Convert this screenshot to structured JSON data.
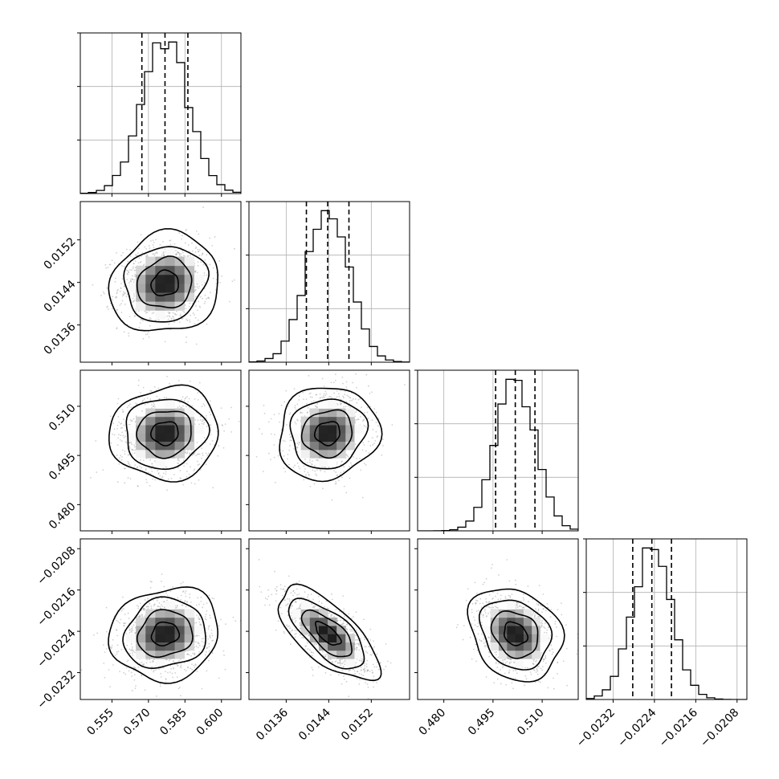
{
  "chart_data": {
    "type": "corner",
    "n_params": 4,
    "grid": true,
    "colors": {
      "hist": "#000000",
      "scatter": "#9a9a9a",
      "contour": "#000000",
      "grid": "#b0b0b0"
    },
    "params": [
      {
        "range": [
          0.542,
          0.608
        ],
        "ticks": [
          0.555,
          0.57,
          0.585,
          0.6
        ],
        "tick_labels": [
          "0.555",
          "0.570",
          "0.585",
          "0.600"
        ],
        "quantiles": [
          0.5673,
          0.5768,
          0.5862
        ],
        "mean": 0.5768,
        "sigma": 0.0095
      },
      {
        "range": [
          0.0129,
          0.01592
        ],
        "ticks": [
          0.0136,
          0.0144,
          0.0152
        ],
        "tick_labels": [
          "0.0136",
          "0.0144",
          "0.0152"
        ],
        "quantiles": [
          0.01398,
          0.01438,
          0.01478
        ],
        "mean": 0.01438,
        "sigma": 0.0004
      },
      {
        "range": [
          0.472,
          0.521
        ],
        "ticks": [
          0.48,
          0.495,
          0.51
        ],
        "tick_labels": [
          "0.480",
          "0.495",
          "0.510"
        ],
        "quantiles": [
          0.4958,
          0.5018,
          0.5078
        ],
        "mean": 0.5018,
        "sigma": 0.006
      },
      {
        "range": [
          -0.02372,
          -0.02061
        ],
        "ticks": [
          -0.0232,
          -0.0224,
          -0.0216,
          -0.0208
        ],
        "tick_labels": [
          "−0.0232",
          "−0.0224",
          "−0.0216",
          "−0.0208"
        ],
        "quantiles": [
          -0.02282,
          -0.02245,
          -0.02207
        ],
        "mean": -0.02245,
        "sigma": 0.00038
      }
    ],
    "correlations": [
      [
        1.0,
        0.1,
        0.05,
        0.1
      ],
      [
        0.1,
        1.0,
        0.08,
        -0.68
      ],
      [
        0.05,
        0.08,
        1.0,
        -0.22
      ],
      [
        0.1,
        -0.68,
        -0.22,
        1.0
      ]
    ],
    "contour_levels_sigma": [
      0.5,
      1.0,
      1.5,
      2.0
    ]
  }
}
